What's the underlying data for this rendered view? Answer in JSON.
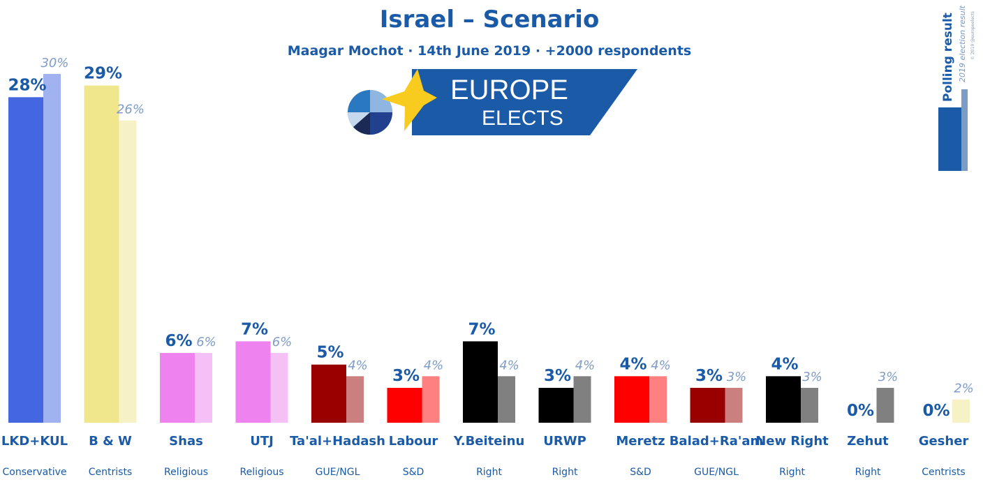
{
  "header": {
    "title": "Israel – Scenario",
    "subtitle": "Maagar Mochot · 14th June 2019 · +2000 respondents"
  },
  "logo": {
    "line1": "EUROPE",
    "line2": "ELECTS"
  },
  "badge": {
    "title": "Polling result",
    "subtitle": "2019 election result",
    "copyright": "© 2019 @europeelects"
  },
  "chart_data": {
    "type": "bar",
    "ylim": [
      0,
      30
    ],
    "grid": false,
    "categories": [
      "LKD+KUL",
      "B & W",
      "Shas",
      "UTJ",
      "Ta'al+Hadash",
      "Labour",
      "Y.Beiteinu",
      "URWP",
      "Meretz",
      "Balad+Ra'am",
      "New Right",
      "Zehut",
      "Gesher"
    ],
    "groups": [
      "Conservative",
      "Centrists",
      "Religious",
      "Religious",
      "GUE/NGL",
      "S&D",
      "Right",
      "Right",
      "S&D",
      "GUE/NGL",
      "Right",
      "Right",
      "Centrists"
    ],
    "series": [
      {
        "name": "Polling result",
        "values": [
          28,
          29,
          6,
          7,
          5,
          3,
          7,
          3,
          4,
          3,
          4,
          0,
          0
        ]
      },
      {
        "name": "2019 election result",
        "values": [
          30,
          26,
          6,
          6,
          4,
          4,
          4,
          4,
          4,
          3,
          3,
          3,
          2
        ]
      }
    ],
    "value_labels": {
      "current": [
        "28%",
        "29%",
        "6%",
        "7%",
        "5%",
        "3%",
        "7%",
        "3%",
        "4%",
        "3%",
        "4%",
        "0%",
        "0%"
      ],
      "previous": [
        "30%",
        "26%",
        "6%",
        "6%",
        "4%",
        "4%",
        "4%",
        "4%",
        "4%",
        "3%",
        "3%",
        "3%",
        "2%"
      ]
    },
    "colors": {
      "current": [
        "#4466e0",
        "#f0e68c",
        "#ee82ee",
        "#ee82ee",
        "#990000",
        "#ff0000",
        "#000000",
        "#000000",
        "#ff0000",
        "#990000",
        "#000000",
        "#000000",
        "#f0e68c"
      ],
      "previous": [
        "#a0b3f0",
        "#f7f2c6",
        "#f5c0f5",
        "#f5c0f5",
        "#cc7f7f",
        "#ff8080",
        "#808080",
        "#808080",
        "#ff8080",
        "#cc7f7f",
        "#808080",
        "#808080",
        "#f7f2c6"
      ]
    }
  }
}
